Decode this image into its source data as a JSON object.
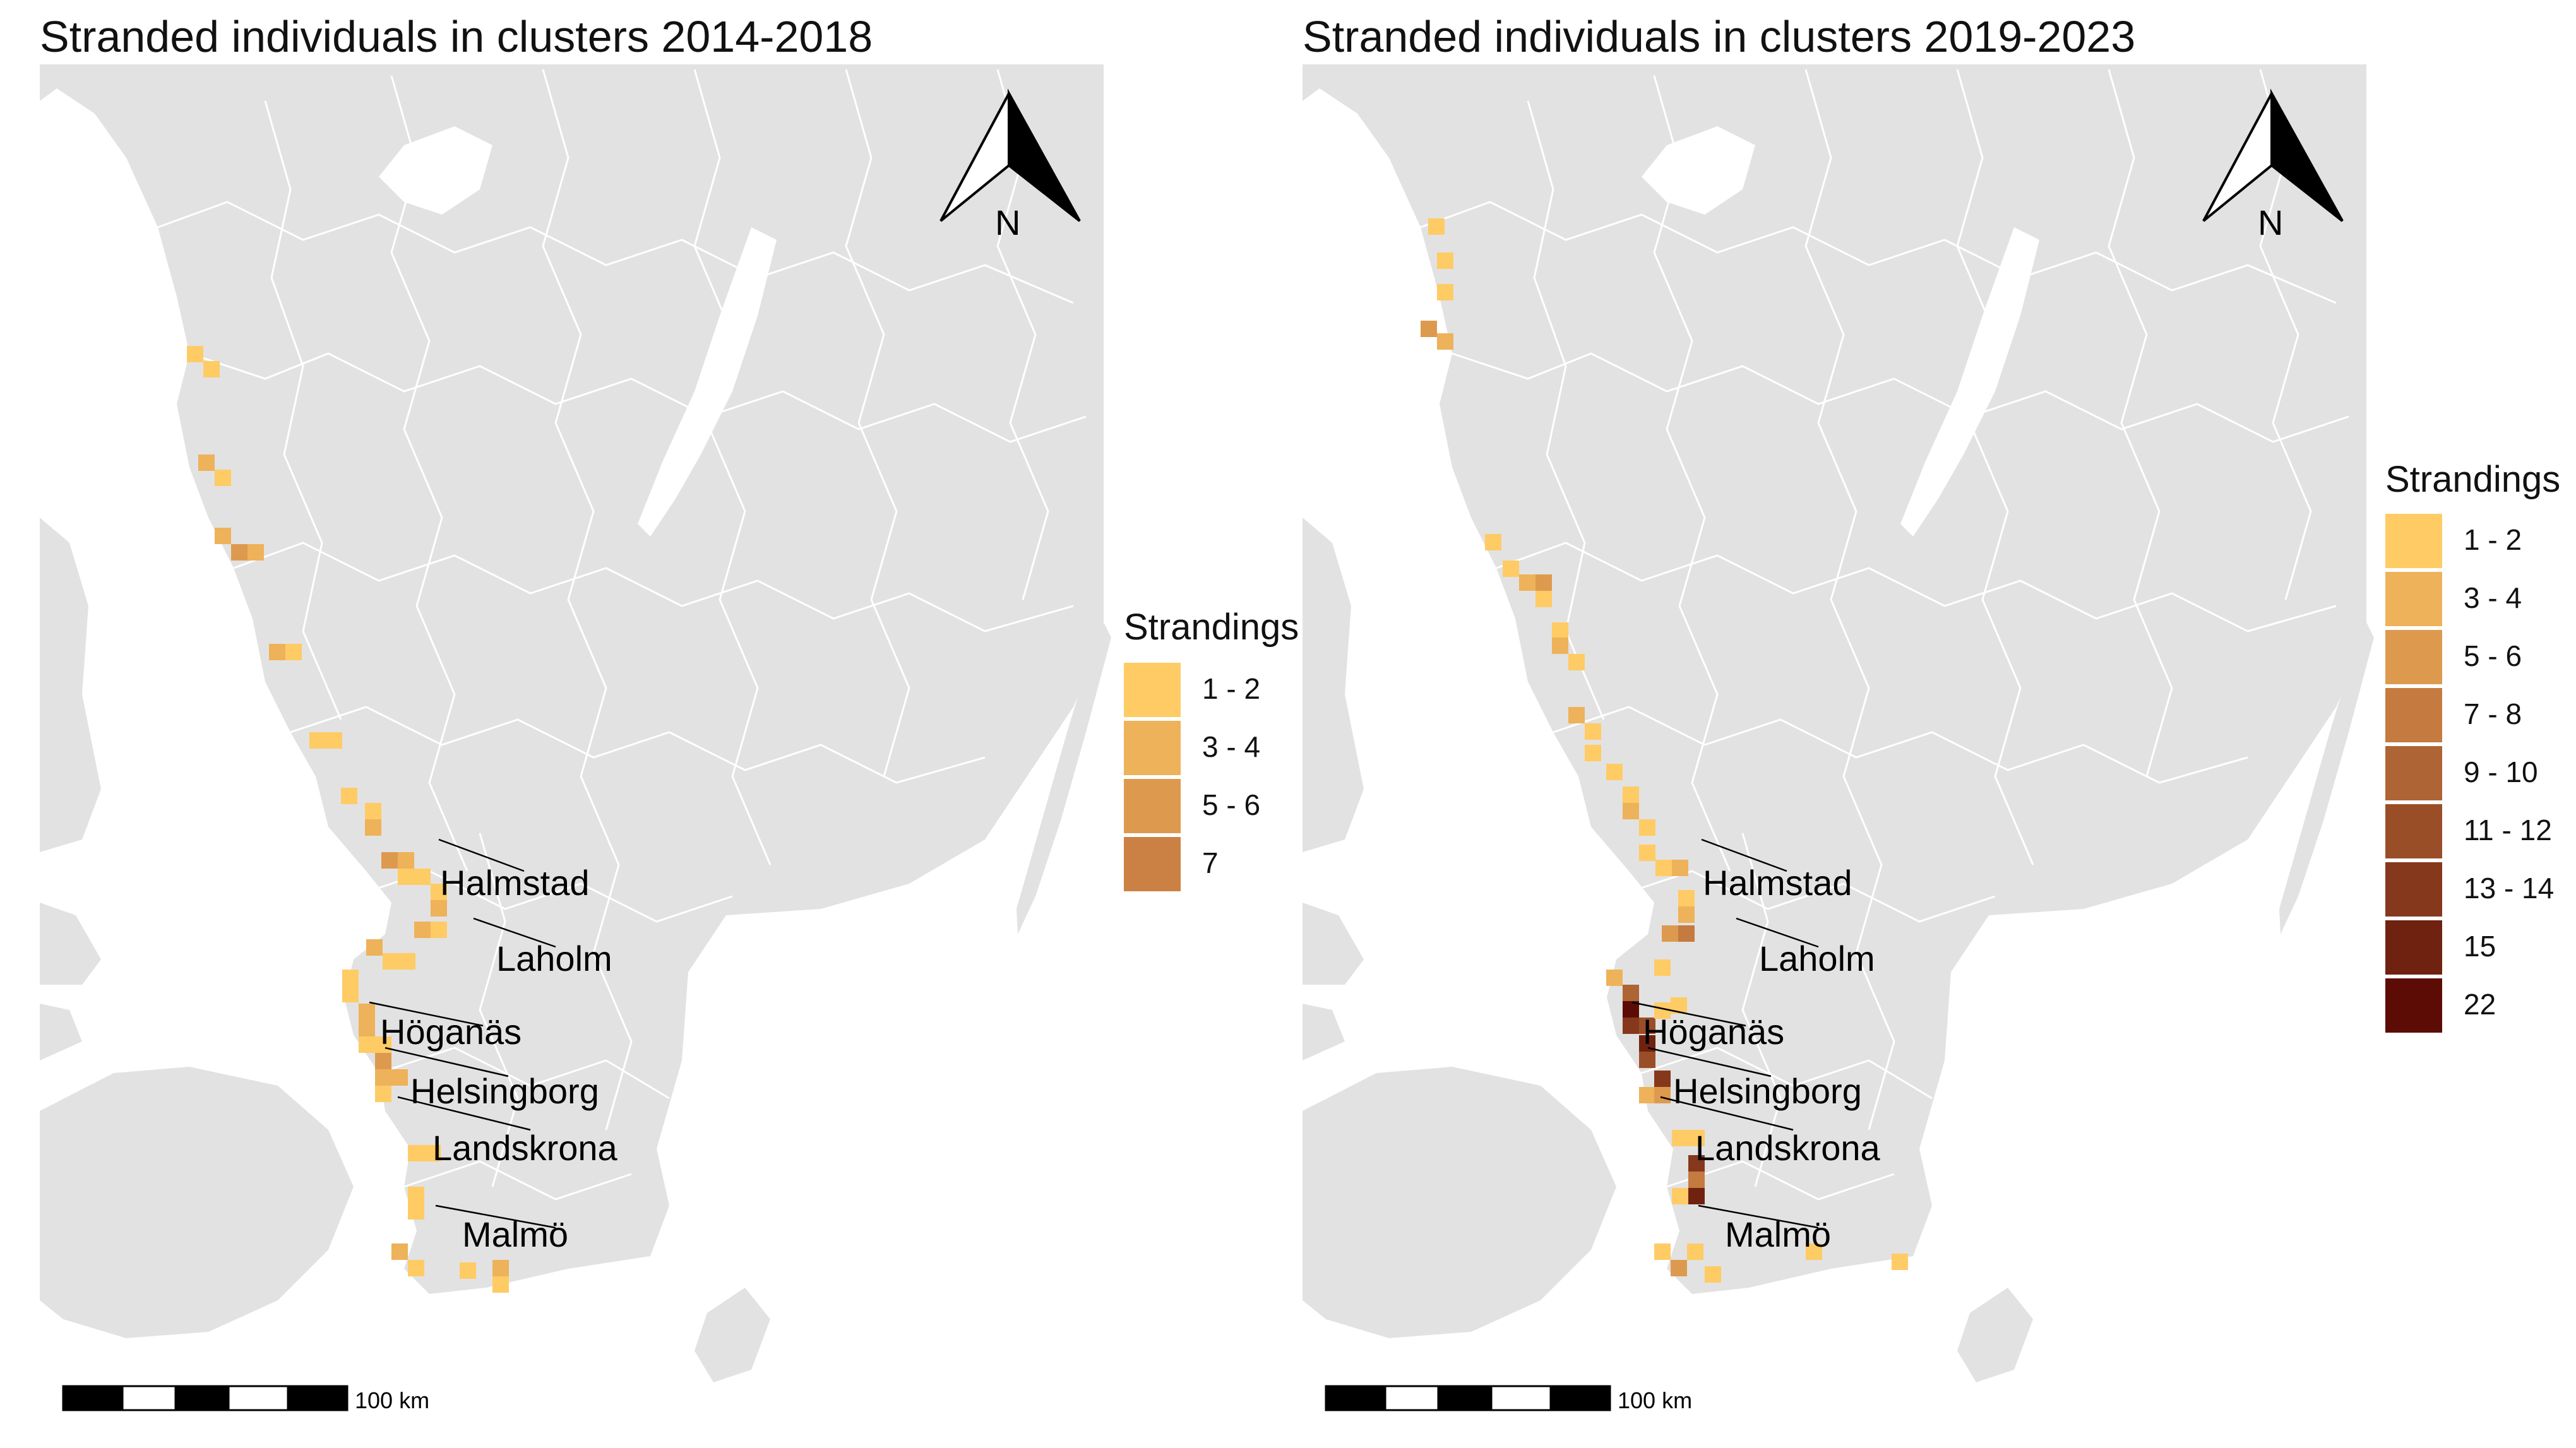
{
  "panels": [
    {
      "title": "Stranded individuals in clusters 2014-2018",
      "places": [
        "Halmstad",
        "Laholm",
        "Höganäs",
        "Helsingborg",
        "Landskrona",
        "Malmö"
      ],
      "north_label": "N",
      "scale_label": "100 km",
      "legend": {
        "title": "Strandings",
        "items": [
          {
            "label": "1 - 2",
            "color": "#FECB65"
          },
          {
            "label": "3 - 4",
            "color": "#EDB25A"
          },
          {
            "label": "5 - 6",
            "color": "#DD9A4F"
          },
          {
            "label": "7",
            "color": "#CB8144"
          }
        ]
      }
    },
    {
      "title": "Stranded individuals in clusters 2019-2023",
      "places": [
        "Halmstad",
        "Laholm",
        "Höganäs",
        "Helsingborg",
        "Landskrona",
        "Malmö"
      ],
      "north_label": "N",
      "scale_label": "100 km",
      "legend": {
        "title": "Strandings",
        "items": [
          {
            "label": "1 - 2",
            "color": "#FECB65"
          },
          {
            "label": "3 - 4",
            "color": "#EDB25A"
          },
          {
            "label": "5 - 6",
            "color": "#DD9A4F"
          },
          {
            "label": "7 - 8",
            "color": "#C57A40"
          },
          {
            "label": "9 - 10",
            "color": "#AE6434"
          },
          {
            "label": "11 - 12",
            "color": "#9A4E27"
          },
          {
            "label": "13 - 14",
            "color": "#85381C"
          },
          {
            "label": "15",
            "color": "#702211"
          },
          {
            "label": "22",
            "color": "#5C0C05"
          }
        ]
      }
    }
  ],
  "colors": {
    "land": "#E2E2E2",
    "water": "#FFFFFF",
    "borders": "#FFFFFF"
  }
}
